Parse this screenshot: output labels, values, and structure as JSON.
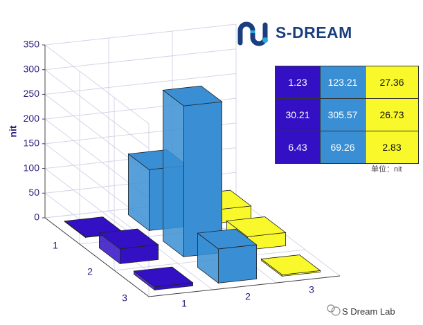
{
  "chart_data": {
    "type": "bar3d",
    "zlabel": "nit",
    "rows": [
      "1",
      "2",
      "3"
    ],
    "columns": [
      "1",
      "2",
      "3"
    ],
    "values": [
      [
        1.23,
        123.21,
        27.36
      ],
      [
        30.21,
        305.57,
        26.73
      ],
      [
        6.43,
        69.26,
        2.83
      ]
    ],
    "colors": [
      "#3310c4",
      "#3a8fd4",
      "#f8f82a"
    ],
    "zlim": [
      0,
      350
    ],
    "zticks": [
      0,
      50,
      100,
      150,
      200,
      250,
      300,
      350
    ],
    "grid": true
  },
  "table": {
    "unit": "单位：nit"
  },
  "header": {
    "logo": "S-DREAM"
  },
  "watermark": "S Dream Lab"
}
